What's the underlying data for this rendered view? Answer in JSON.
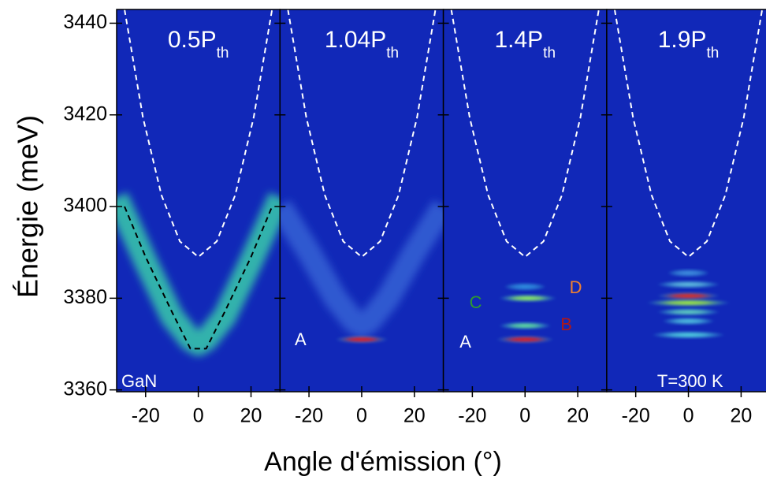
{
  "chart_data": {
    "type": "spectral-map",
    "ylabel": "Énergie (meV)",
    "xlabel": "Angle d'émission (°)",
    "ylim": [
      3359.6,
      3443
    ],
    "yticks": [
      3360,
      3380,
      3400,
      3420,
      3440
    ],
    "xlim": [
      -31,
      31
    ],
    "xticks": [
      -20,
      0,
      20
    ],
    "background": "#1128b8",
    "panels": [
      {
        "title": "0.5P",
        "title_sub": "th",
        "curves": [
          {
            "style": "band",
            "color": "#3de0a8",
            "x": [
              -31,
              -20,
              -10,
              -3,
              0,
              3,
              10,
              20,
              31
            ],
            "y": [
              3402,
              3388,
              3376,
              3371,
              3370,
              3371,
              3376,
              3388,
              3402
            ]
          },
          {
            "style": "dashed",
            "color": "#ffffff",
            "x": [
              -28,
              -21,
              -14,
              -7,
              0,
              7,
              14,
              21,
              28
            ],
            "y": [
              3443,
              3419.4,
              3402.5,
              3392.4,
              3389,
              3392.4,
              3402.5,
              3419.4,
              3443
            ]
          },
          {
            "style": "dashed",
            "color": "#000000",
            "x": [
              -28,
              -20,
              -10,
              -3,
              3,
              10,
              20,
              28
            ],
            "y": [
              3400,
              3389,
              3377,
              3369,
              3369,
              3377,
              3389,
              3400
            ]
          }
        ],
        "modes": [],
        "annotations": [
          {
            "text": "GaN",
            "color": "#ffffff"
          }
        ]
      },
      {
        "title": "1.04P",
        "title_sub": "th",
        "curves": [
          {
            "style": "band",
            "color": "#3a6ad8",
            "x": [
              -31,
              -20,
              -10,
              -3,
              0,
              3,
              10,
              20,
              31
            ],
            "y": [
              3400,
              3390,
              3380,
              3375,
              3374,
              3375,
              3380,
              3390,
              3400
            ]
          },
          {
            "style": "dashed",
            "color": "#ffffff",
            "x": [
              -28,
              -21,
              -14,
              -7,
              0,
              7,
              14,
              21,
              28
            ],
            "y": [
              3443,
              3419.4,
              3402.5,
              3392.4,
              3389,
              3392.4,
              3402.5,
              3419.4,
              3443
            ]
          }
        ],
        "modes": [
          {
            "energy": 3371,
            "x": [
              -10,
              10
            ],
            "color": "#e02020"
          }
        ],
        "annotations": [
          {
            "text": "A",
            "color": "#ffffff"
          }
        ]
      },
      {
        "title": "1.4P",
        "title_sub": "th",
        "curves": [
          {
            "style": "dashed",
            "color": "#ffffff",
            "x": [
              -28,
              -21,
              -14,
              -7,
              0,
              7,
              14,
              21,
              28
            ],
            "y": [
              3443,
              3419.4,
              3402.5,
              3392.4,
              3389,
              3392.4,
              3402.5,
              3419.4,
              3443
            ]
          }
        ],
        "modes": [
          {
            "energy": 3371,
            "x": [
              -11,
              11
            ],
            "color": "#e02020"
          },
          {
            "energy": 3374,
            "x": [
              -10,
              10
            ],
            "color": "#60e0a0"
          },
          {
            "energy": 3380,
            "x": [
              -10,
              12
            ],
            "color": "#90f060"
          },
          {
            "energy": 3382.5,
            "x": [
              -8,
              8
            ],
            "color": "#3090e0"
          }
        ],
        "annotations": [
          {
            "text": "C",
            "color": "#2e9a2e"
          },
          {
            "text": "D",
            "color": "#f08030"
          },
          {
            "text": "B",
            "color": "#b01818"
          },
          {
            "text": "A",
            "color": "#ffffff"
          }
        ]
      },
      {
        "title": "1.9P",
        "title_sub": "th",
        "curves": [
          {
            "style": "dashed",
            "color": "#ffffff",
            "x": [
              -28,
              -21,
              -14,
              -7,
              0,
              7,
              14,
              21,
              28
            ],
            "y": [
              3443,
              3419.4,
              3402.5,
              3392.4,
              3389,
              3392.4,
              3402.5,
              3419.4,
              3443
            ]
          }
        ],
        "modes": [
          {
            "energy": 3372,
            "x": [
              -14,
              14
            ],
            "color": "#50d0e0"
          },
          {
            "energy": 3375,
            "x": [
              -10,
              10
            ],
            "color": "#50c0e0"
          },
          {
            "energy": 3377,
            "x": [
              -12,
              12
            ],
            "color": "#60d0c0"
          },
          {
            "energy": 3379,
            "x": [
              -16,
              16
            ],
            "color": "#a0f040"
          },
          {
            "energy": 3380.5,
            "x": [
              -12,
              12
            ],
            "color": "#e03020"
          },
          {
            "energy": 3383,
            "x": [
              -12,
              12
            ],
            "color": "#60c0e0"
          },
          {
            "energy": 3385.5,
            "x": [
              -8,
              8
            ],
            "color": "#4090e0"
          }
        ],
        "annotations": [
          {
            "text": "T=300 K",
            "color": "#ffffff"
          }
        ]
      }
    ]
  }
}
